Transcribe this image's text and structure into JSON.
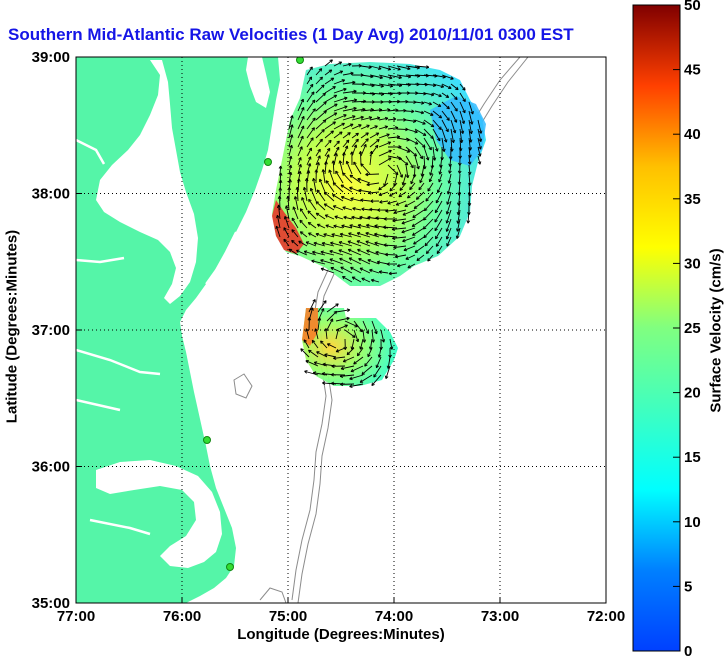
{
  "map": {
    "title": "Southern Mid-Atlantic Raw Velocities (1 Day Avg) 2010/11/01 0300 EST",
    "x_axis_label": "Longitude (Degrees:Minutes)",
    "y_axis_label": "Latitude (Degrees:Minutes)",
    "lon_ticks": [
      "77:00",
      "76:00",
      "75:00",
      "74:00",
      "73:00",
      "72:00"
    ],
    "lat_ticks": [
      "39:00",
      "38:00",
      "37:00",
      "36:00",
      "35:00"
    ],
    "colorbar": {
      "label": "Surface Velocity (cm/s)",
      "ticks": [
        "0",
        "5",
        "10",
        "15",
        "20",
        "25",
        "30",
        "35",
        "40",
        "45",
        "50"
      ],
      "range": [
        0,
        50
      ],
      "colormap": "jet"
    },
    "colors": {
      "land": "#55f5a8",
      "water": "#ffffff",
      "title": "#1515e6",
      "bathymetry": "#8c8c8c",
      "station": "#33dd33"
    },
    "lon_range": [
      "77:00",
      "72:00"
    ],
    "lat_range": [
      "35:00",
      "39:00"
    ],
    "grid": "dotted"
  }
}
